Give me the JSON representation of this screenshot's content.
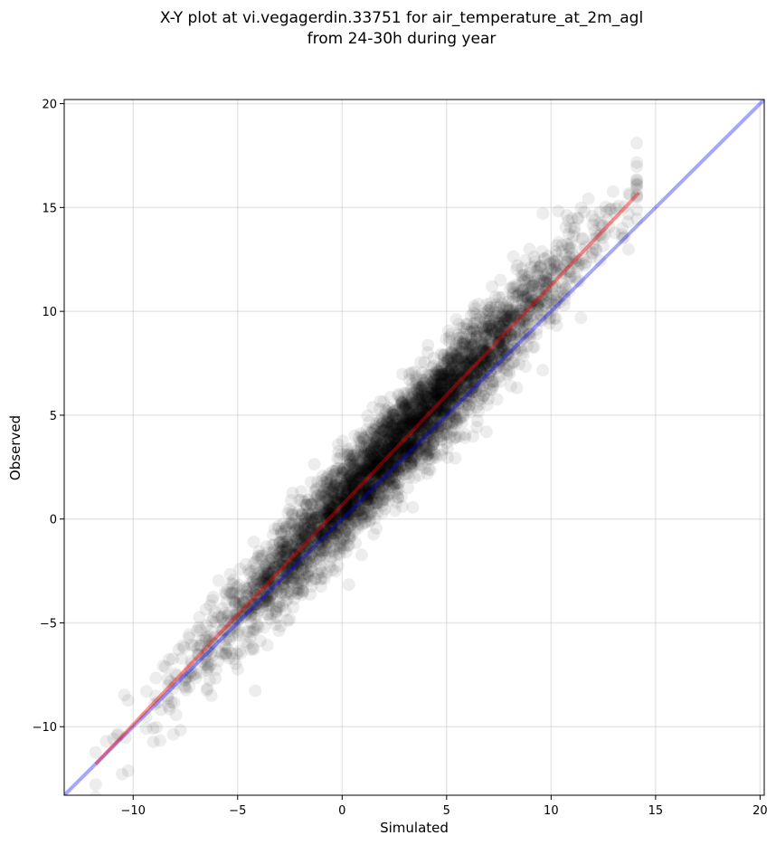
{
  "chart_data": {
    "type": "scatter",
    "title": "X-Y plot at vi.vegagerdin.33751 for air_temperature_at_2m_agl",
    "subtitle": "from 24-30h during year",
    "xlabel": "Simulated",
    "ylabel": "Observed",
    "xlim": [
      -13.3,
      20.2
    ],
    "ylim": [
      -13.3,
      20.2
    ],
    "x_ticks": [
      -10,
      -5,
      0,
      5,
      10,
      15,
      20
    ],
    "y_ticks": [
      -10,
      -5,
      0,
      5,
      10,
      15,
      20
    ],
    "x_tick_labels": [
      "−10",
      "−5",
      "0",
      "5",
      "10",
      "15",
      "20"
    ],
    "y_tick_labels": [
      "−10",
      "−5",
      "0",
      "5",
      "10",
      "15",
      "20"
    ],
    "grid": true,
    "point_color": "#000000",
    "point_opacity": 0.07,
    "point_count": 4200,
    "cloud": {
      "x_range": [
        -11.8,
        14.1
      ],
      "relation": "observed ≈ 1.06 × simulated + 0.75",
      "spread": 1.1
    },
    "series": [
      {
        "name": "",
        "kind": "identity",
        "color": "#0000ff",
        "opacity": 0.35,
        "x": [
          -13.3,
          20.2
        ],
        "y": [
          -13.3,
          20.2
        ]
      },
      {
        "name": "",
        "kind": "fit",
        "color": "#ff0000",
        "opacity": 0.4,
        "x": [
          -11.8,
          14.2
        ],
        "y": [
          -11.8,
          15.7
        ]
      }
    ]
  }
}
